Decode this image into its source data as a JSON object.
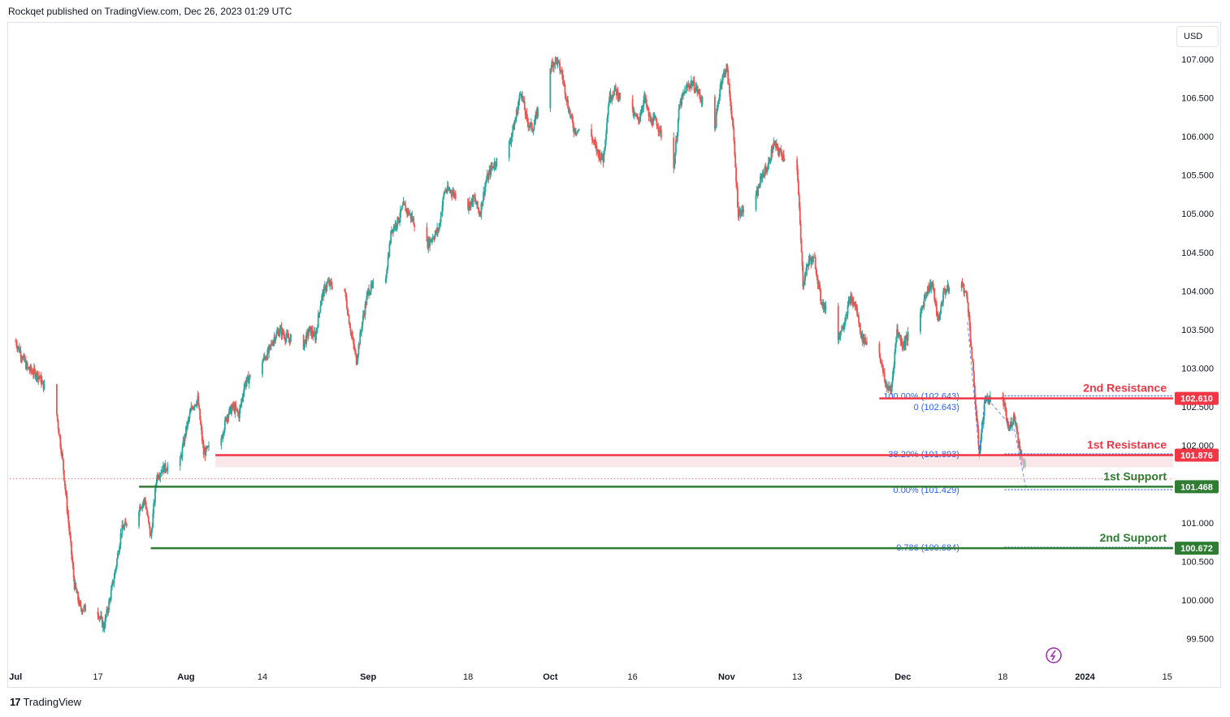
{
  "header": {
    "published": "Rockqet published on TradingView.com, Dec 26, 2023 01:29 UTC"
  },
  "footer": {
    "brand": "TradingView",
    "logo_glyph": "17"
  },
  "currency_button": "USD",
  "colors": {
    "up": "#26a69a",
    "down": "#ef5350",
    "resistance": "#f23645",
    "support": "#2e7d32",
    "fib": "#2962ff",
    "fib_text": "#2962ff",
    "zone": "#f8d7da"
  },
  "chart_data": {
    "type": "candlestick",
    "symbol_hint": "",
    "ylim": [
      99.15,
      107.45
    ],
    "yticks": [
      {
        "label": "107.000",
        "value": 107.0
      },
      {
        "label": "106.500",
        "value": 106.5
      },
      {
        "label": "106.000",
        "value": 106.0
      },
      {
        "label": "105.500",
        "value": 105.5
      },
      {
        "label": "105.000",
        "value": 105.0
      },
      {
        "label": "104.500",
        "value": 104.5
      },
      {
        "label": "104.000",
        "value": 104.0
      },
      {
        "label": "103.500",
        "value": 103.5
      },
      {
        "label": "103.000",
        "value": 103.0
      },
      {
        "label": "102.500",
        "value": 102.5
      },
      {
        "label": "102.000",
        "value": 102.0
      },
      {
        "label": "101.000",
        "value": 101.0
      },
      {
        "label": "100.500",
        "value": 100.5
      },
      {
        "label": "100.000",
        "value": 100.0
      },
      {
        "label": "99.500",
        "value": 99.5
      }
    ],
    "xticks": [
      {
        "label": "Jul",
        "bold": true,
        "date": "2023-07-03"
      },
      {
        "label": "17",
        "date": "2023-07-17"
      },
      {
        "label": "Aug",
        "bold": true,
        "date": "2023-08-01"
      },
      {
        "label": "14",
        "date": "2023-08-14"
      },
      {
        "label": "Sep",
        "bold": true,
        "date": "2023-09-01"
      },
      {
        "label": "18",
        "date": "2023-09-18"
      },
      {
        "label": "Oct",
        "bold": true,
        "date": "2023-10-02"
      },
      {
        "label": "16",
        "date": "2023-10-16"
      },
      {
        "label": "Nov",
        "bold": true,
        "date": "2023-11-01"
      },
      {
        "label": "13",
        "date": "2023-11-13"
      },
      {
        "label": "Dec",
        "bold": true,
        "date": "2023-12-01"
      },
      {
        "label": "18",
        "date": "2023-12-18"
      },
      {
        "label": "2024",
        "bold": true,
        "date": "2024-01-01"
      },
      {
        "label": "15",
        "date": "2024-01-15"
      }
    ],
    "price_path": [
      [
        "2023-07-03",
        103.35
      ],
      [
        "2023-07-05",
        103.0
      ],
      [
        "2023-07-07",
        102.9
      ],
      [
        "2023-07-10",
        102.4
      ],
      [
        "2023-07-11",
        101.8
      ],
      [
        "2023-07-12",
        101.0
      ],
      [
        "2023-07-13",
        100.2
      ],
      [
        "2023-07-14",
        99.9
      ],
      [
        "2023-07-17",
        99.85
      ],
      [
        "2023-07-18",
        99.65
      ],
      [
        "2023-07-19",
        100.0
      ],
      [
        "2023-07-20",
        100.4
      ],
      [
        "2023-07-21",
        100.9
      ],
      [
        "2023-07-24",
        101.2
      ],
      [
        "2023-07-25",
        101.3
      ],
      [
        "2023-07-26",
        100.8
      ],
      [
        "2023-07-27",
        101.6
      ],
      [
        "2023-07-28",
        101.7
      ],
      [
        "2023-07-31",
        101.8
      ],
      [
        "2023-08-01",
        102.2
      ],
      [
        "2023-08-02",
        102.5
      ],
      [
        "2023-08-03",
        102.6
      ],
      [
        "2023-08-04",
        101.9
      ],
      [
        "2023-08-07",
        102.1
      ],
      [
        "2023-08-08",
        102.4
      ],
      [
        "2023-08-09",
        102.5
      ],
      [
        "2023-08-10",
        102.4
      ],
      [
        "2023-08-11",
        102.8
      ],
      [
        "2023-08-14",
        103.1
      ],
      [
        "2023-08-15",
        103.2
      ],
      [
        "2023-08-16",
        103.4
      ],
      [
        "2023-08-17",
        103.5
      ],
      [
        "2023-08-18",
        103.4
      ],
      [
        "2023-08-21",
        103.3
      ],
      [
        "2023-08-22",
        103.5
      ],
      [
        "2023-08-23",
        103.4
      ],
      [
        "2023-08-24",
        103.9
      ],
      [
        "2023-08-25",
        104.1
      ],
      [
        "2023-08-28",
        104.0
      ],
      [
        "2023-08-29",
        103.5
      ],
      [
        "2023-08-30",
        103.1
      ],
      [
        "2023-08-31",
        103.6
      ],
      [
        "2023-09-01",
        104.0
      ],
      [
        "2023-09-04",
        104.2
      ],
      [
        "2023-09-05",
        104.8
      ],
      [
        "2023-09-06",
        104.9
      ],
      [
        "2023-09-07",
        105.1
      ],
      [
        "2023-09-08",
        105.0
      ],
      [
        "2023-09-11",
        104.6
      ],
      [
        "2023-09-12",
        104.7
      ],
      [
        "2023-09-13",
        104.8
      ],
      [
        "2023-09-14",
        105.3
      ],
      [
        "2023-09-15",
        105.3
      ],
      [
        "2023-09-18",
        105.1
      ],
      [
        "2023-09-19",
        105.2
      ],
      [
        "2023-09-20",
        105.0
      ],
      [
        "2023-09-21",
        105.4
      ],
      [
        "2023-09-22",
        105.6
      ],
      [
        "2023-09-25",
        105.9
      ],
      [
        "2023-09-26",
        106.2
      ],
      [
        "2023-09-27",
        106.6
      ],
      [
        "2023-09-28",
        106.2
      ],
      [
        "2023-09-29",
        106.1
      ],
      [
        "2023-10-02",
        106.9
      ],
      [
        "2023-10-03",
        107.0
      ],
      [
        "2023-10-04",
        106.8
      ],
      [
        "2023-10-05",
        106.4
      ],
      [
        "2023-10-06",
        106.1
      ],
      [
        "2023-10-09",
        106.0
      ],
      [
        "2023-10-10",
        105.8
      ],
      [
        "2023-10-11",
        105.7
      ],
      [
        "2023-10-12",
        106.5
      ],
      [
        "2023-10-13",
        106.6
      ],
      [
        "2023-10-16",
        106.3
      ],
      [
        "2023-10-17",
        106.2
      ],
      [
        "2023-10-18",
        106.5
      ],
      [
        "2023-10-19",
        106.2
      ],
      [
        "2023-10-20",
        106.2
      ],
      [
        "2023-10-23",
        105.6
      ],
      [
        "2023-10-24",
        106.4
      ],
      [
        "2023-10-25",
        106.6
      ],
      [
        "2023-10-26",
        106.7
      ],
      [
        "2023-10-27",
        106.6
      ],
      [
        "2023-10-30",
        106.1
      ],
      [
        "2023-10-31",
        106.7
      ],
      [
        "2023-11-01",
        106.9
      ],
      [
        "2023-11-02",
        106.2
      ],
      [
        "2023-11-03",
        105.0
      ],
      [
        "2023-11-06",
        105.2
      ],
      [
        "2023-11-07",
        105.5
      ],
      [
        "2023-11-08",
        105.6
      ],
      [
        "2023-11-09",
        105.9
      ],
      [
        "2023-11-10",
        105.8
      ],
      [
        "2023-11-13",
        105.6
      ],
      [
        "2023-11-14",
        104.1
      ],
      [
        "2023-11-15",
        104.4
      ],
      [
        "2023-11-16",
        104.4
      ],
      [
        "2023-11-17",
        103.9
      ],
      [
        "2023-11-20",
        103.4
      ],
      [
        "2023-11-21",
        103.6
      ],
      [
        "2023-11-22",
        103.9
      ],
      [
        "2023-11-23",
        103.8
      ],
      [
        "2023-11-24",
        103.4
      ],
      [
        "2023-11-27",
        103.2
      ],
      [
        "2023-11-28",
        102.8
      ],
      [
        "2023-11-29",
        102.7
      ],
      [
        "2023-11-30",
        103.5
      ],
      [
        "2023-12-01",
        103.3
      ],
      [
        "2023-12-04",
        103.7
      ],
      [
        "2023-12-05",
        104.0
      ],
      [
        "2023-12-06",
        104.1
      ],
      [
        "2023-12-07",
        103.6
      ],
      [
        "2023-12-08",
        104.0
      ],
      [
        "2023-12-11",
        104.1
      ],
      [
        "2023-12-12",
        103.9
      ],
      [
        "2023-12-13",
        102.9
      ],
      [
        "2023-12-14",
        101.9
      ],
      [
        "2023-12-15",
        102.6
      ],
      [
        "2023-12-18",
        102.6
      ],
      [
        "2023-12-19",
        102.2
      ],
      [
        "2023-12-20",
        102.4
      ],
      [
        "2023-12-21",
        101.9
      ],
      [
        "2023-12-22",
        101.7
      ]
    ],
    "levels": [
      {
        "name": "2nd Resistance",
        "label": "102.610",
        "value": 102.61,
        "role": "resistance",
        "start": "2023-11-27"
      },
      {
        "name": "1st Resistance",
        "label": "101.876",
        "value": 101.876,
        "role": "resistance",
        "start": "2023-08-06"
      },
      {
        "name": "1st Support",
        "label": "101.468",
        "value": 101.468,
        "role": "support",
        "start": "2023-07-24"
      },
      {
        "name": "2nd Support",
        "label": "100.672",
        "value": 100.672,
        "role": "support",
        "start": "2023-07-26"
      }
    ],
    "resistance_zone": {
      "from": 101.72,
      "to": 101.876,
      "start": "2023-08-06"
    },
    "fib_levels": [
      {
        "label": "100.00% (102.643)",
        "value": 102.643,
        "start": "2023-12-04",
        "end": "2023-12-28"
      },
      {
        "label": "0 (102.643)",
        "value": 102.5,
        "line": false,
        "start": "2023-12-04"
      },
      {
        "label": "38.20% (101.893)",
        "value": 101.893,
        "start": "2023-12-04",
        "end": "2023-12-28"
      },
      {
        "label": "0.00% (101.429)",
        "value": 101.429,
        "start": "2023-12-04",
        "end": "2023-12-28"
      },
      {
        "label": "0.786 (100.684)",
        "value": 100.684,
        "start": "2023-12-04",
        "end": "2023-12-28"
      }
    ],
    "current_price": 101.57,
    "fib_path": [
      [
        "2023-12-12",
        103.6
      ],
      [
        "2023-12-14",
        101.9
      ],
      [
        "2023-12-15",
        102.64
      ],
      [
        "2023-12-20",
        102.2
      ],
      [
        "2023-12-22",
        101.43
      ]
    ]
  }
}
